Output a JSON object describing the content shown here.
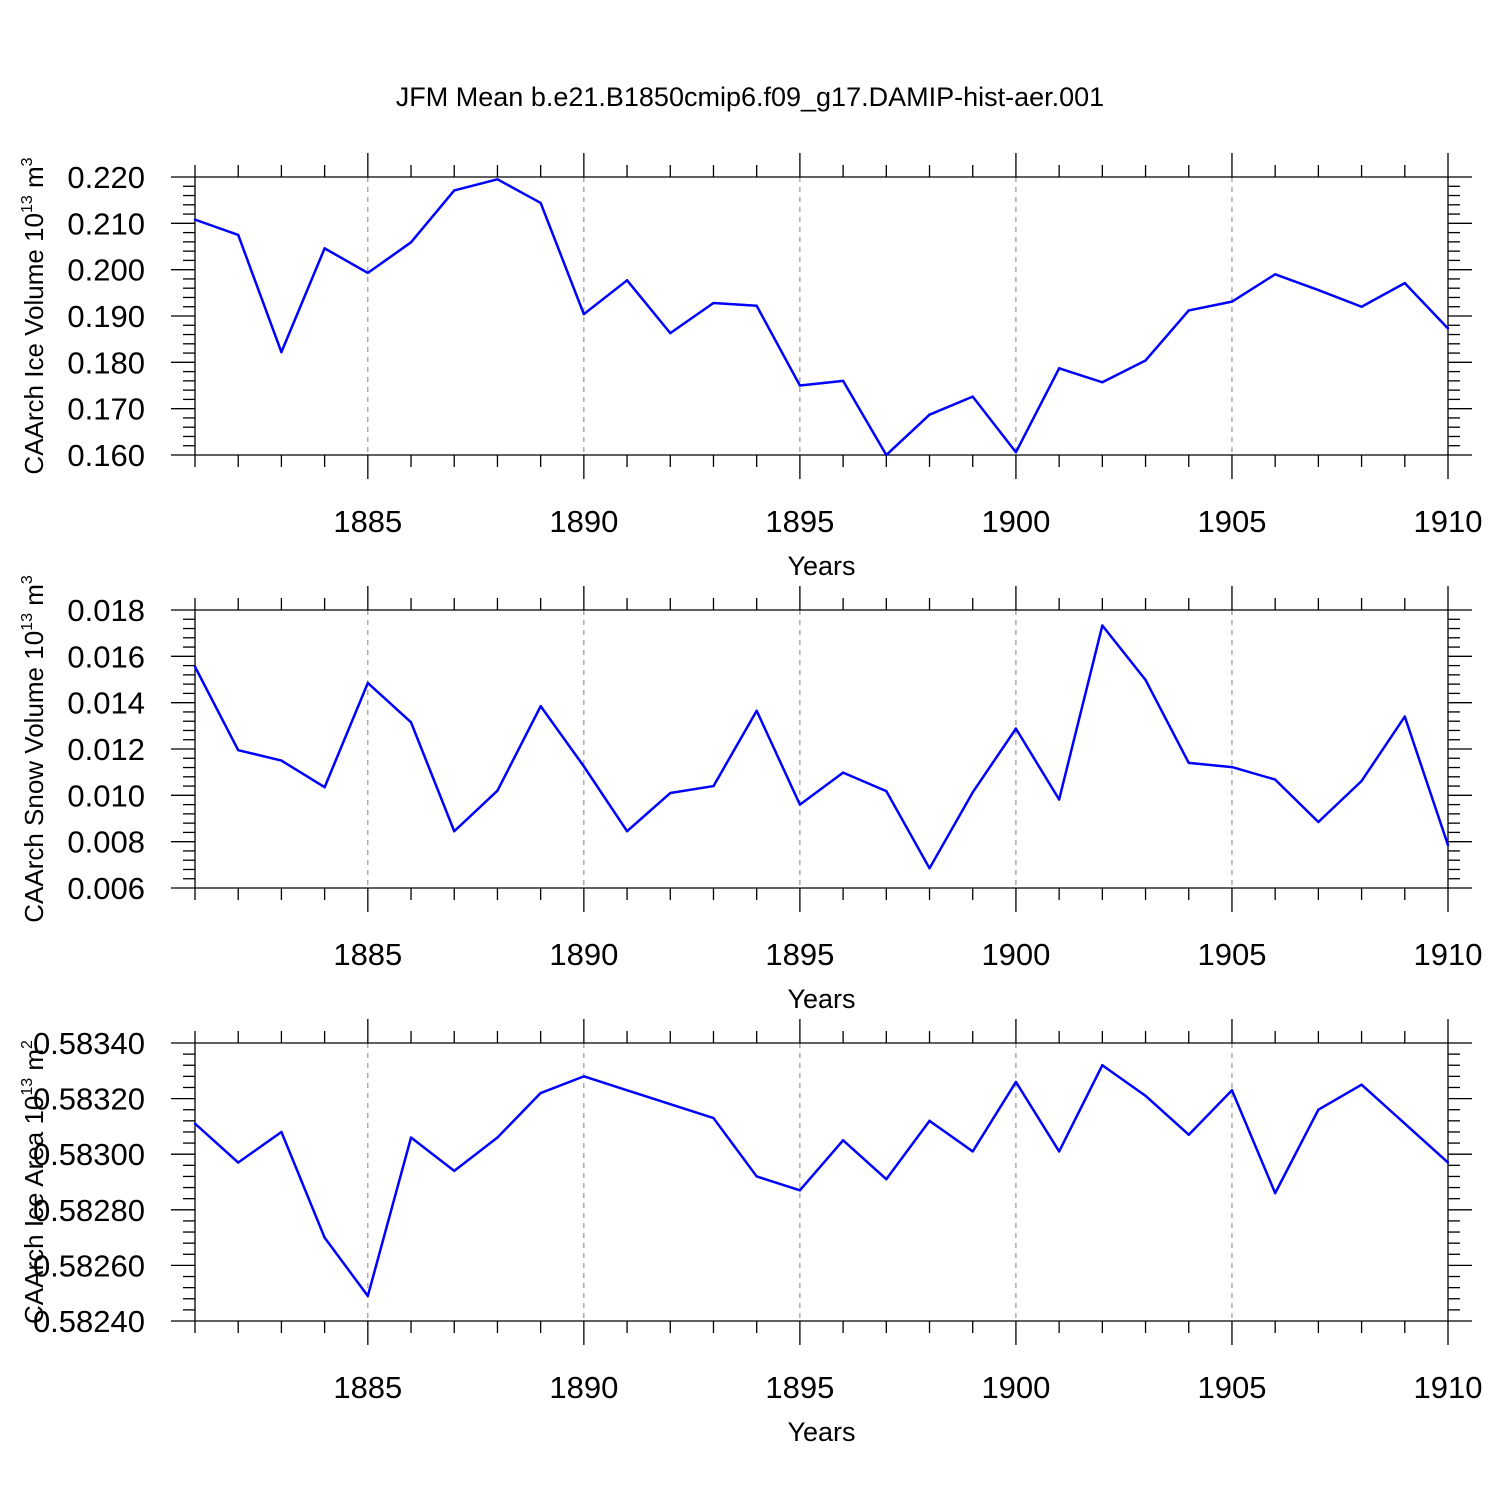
{
  "title": "JFM Mean b.e21.B1850cmip6.f09_g17.DAMIP-hist-aer.001",
  "colors": {
    "series": "#0000ff",
    "axis": "#000000",
    "grid": "#808080",
    "background": "#ffffff"
  },
  "chart_data": [
    {
      "type": "line",
      "name": "ice-volume",
      "title": "",
      "xlabel": "Years",
      "ylabel": "CAArch Ice Volume 10",
      "ylabel_exp": "13",
      "ylabel_unit": " m",
      "ylabel_unit_exp": "3",
      "xlim": [
        1881,
        1910
      ],
      "ylim": [
        0.16,
        0.22
      ],
      "yticks": [
        "0.160",
        "0.170",
        "0.180",
        "0.190",
        "0.200",
        "0.210",
        "0.220"
      ],
      "xticks": [
        "1885",
        "1890",
        "1895",
        "1900",
        "1905",
        "1910"
      ],
      "x": [
        1881,
        1882,
        1883,
        1884,
        1885,
        1886,
        1887,
        1888,
        1889,
        1890,
        1891,
        1892,
        1893,
        1894,
        1895,
        1896,
        1897,
        1898,
        1899,
        1900,
        1901,
        1902,
        1903,
        1904,
        1905,
        1906,
        1907,
        1908,
        1909,
        1910
      ],
      "values": [
        0.2108,
        0.2075,
        0.1822,
        0.2046,
        0.1993,
        0.2059,
        0.2171,
        0.2195,
        0.2144,
        0.1904,
        0.1977,
        0.1863,
        0.1928,
        0.1922,
        0.175,
        0.176,
        0.16,
        0.1687,
        0.1726,
        0.1606,
        0.1787,
        0.1757,
        0.1804,
        0.1912,
        0.1931,
        0.199,
        0.1956,
        0.192,
        0.1971,
        0.1873
      ]
    },
    {
      "type": "line",
      "name": "snow-volume",
      "title": "",
      "xlabel": "Years",
      "ylabel": "CAArch Snow Volume 10",
      "ylabel_exp": "13",
      "ylabel_unit": " m",
      "ylabel_unit_exp": "3",
      "xlim": [
        1881,
        1910
      ],
      "ylim": [
        0.006,
        0.018
      ],
      "yticks": [
        "0.006",
        "0.008",
        "0.010",
        "0.012",
        "0.014",
        "0.016",
        "0.018"
      ],
      "xticks": [
        "1885",
        "1890",
        "1895",
        "1900",
        "1905",
        "1910"
      ],
      "x": [
        1881,
        1882,
        1883,
        1884,
        1885,
        1886,
        1887,
        1888,
        1889,
        1890,
        1891,
        1892,
        1893,
        1894,
        1895,
        1896,
        1897,
        1898,
        1899,
        1900,
        1901,
        1902,
        1903,
        1904,
        1905,
        1906,
        1907,
        1908,
        1909,
        1910
      ],
      "values": [
        0.01555,
        0.01195,
        0.0115,
        0.01035,
        0.01485,
        0.01315,
        0.00845,
        0.0102,
        0.01385,
        0.01125,
        0.00845,
        0.0101,
        0.0104,
        0.01365,
        0.0096,
        0.01098,
        0.01018,
        0.00685,
        0.01013,
        0.01288,
        0.00982,
        0.01733,
        0.01498,
        0.0114,
        0.01122,
        0.01068,
        0.00885,
        0.01062,
        0.0134,
        0.00785
      ]
    },
    {
      "type": "line",
      "name": "ice-area",
      "title": "",
      "xlabel": "Years",
      "ylabel": "CAArch Ice Area 10",
      "ylabel_exp": "13",
      "ylabel_unit": " m",
      "ylabel_unit_exp": "2",
      "xlim": [
        1881,
        1910
      ],
      "ylim": [
        0.5824,
        0.5834
      ],
      "yticks": [
        "0.58240",
        "0.58260",
        "0.58280",
        "0.58300",
        "0.58320",
        "0.58340"
      ],
      "xticks": [
        "1885",
        "1890",
        "1895",
        "1900",
        "1905",
        "1910"
      ],
      "x": [
        1881,
        1882,
        1883,
        1884,
        1885,
        1886,
        1887,
        1888,
        1889,
        1890,
        1893,
        1894,
        1895,
        1896,
        1897,
        1898,
        1899,
        1900,
        1901,
        1902,
        1903,
        1904,
        1905,
        1906,
        1907,
        1908,
        1910
      ],
      "values": [
        0.58311,
        0.58297,
        0.58308,
        0.5827,
        0.58249,
        0.58306,
        0.58294,
        0.58306,
        0.58322,
        0.58328,
        0.58313,
        0.58292,
        0.58287,
        0.58305,
        0.58291,
        0.58312,
        0.58301,
        0.58326,
        0.58301,
        0.58332,
        0.58321,
        0.58307,
        0.58323,
        0.58286,
        0.58316,
        0.58325,
        0.58297
      ]
    }
  ]
}
